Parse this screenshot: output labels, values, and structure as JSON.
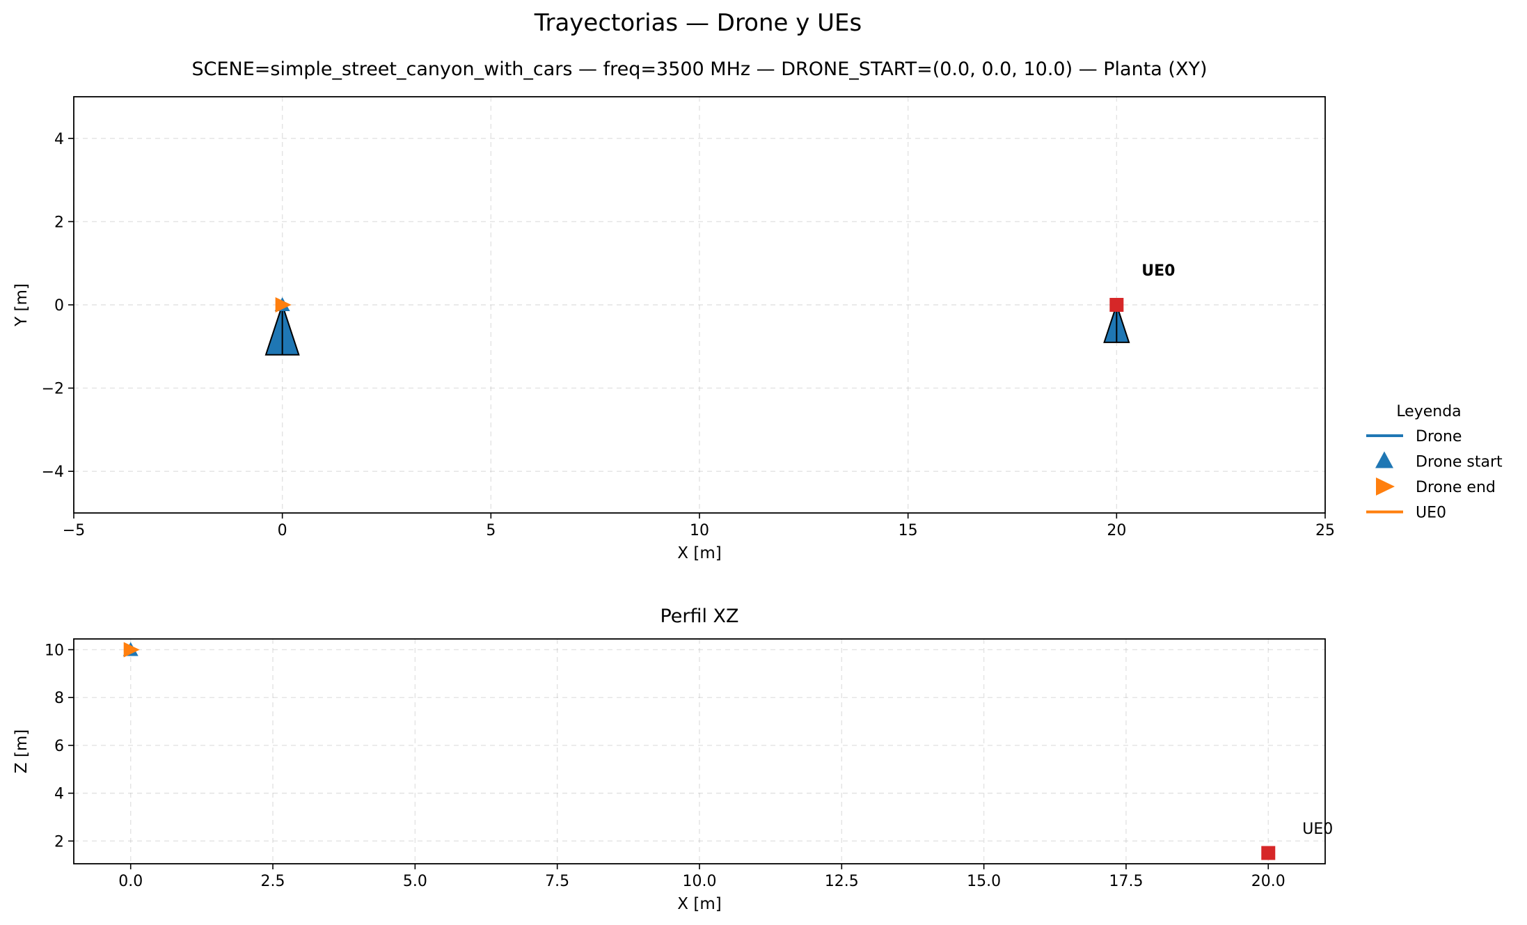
{
  "figure": {
    "suptitle": "Trayectorias — Drone y UEs",
    "colors": {
      "drone": "#1f77b4",
      "drone_end": "#ff7f0e",
      "ue0_line": "#ff7f0e",
      "ue0_marker": "#d62728"
    }
  },
  "legend": {
    "title": "Leyenda",
    "location": "right-center",
    "entries": [
      {
        "label": "Drone",
        "marker": "line",
        "color": "#1f77b4"
      },
      {
        "label": "Drone start",
        "marker": "triangle-up",
        "color": "#1f77b4"
      },
      {
        "label": "Drone end",
        "marker": "triangle-right",
        "color": "#ff7f0e"
      },
      {
        "label": "UE0",
        "marker": "line",
        "color": "#ff7f0e"
      }
    ]
  },
  "chart_data": [
    {
      "type": "scatter",
      "title": "SCENE=simple_street_canyon_with_cars — freq=3500 MHz — DRONE_START=(0.0, 0.0, 10.0) — Planta (XY)",
      "xlabel": "X [m]",
      "ylabel": "Y [m]",
      "xlim": [
        -5,
        25
      ],
      "ylim": [
        -5,
        5
      ],
      "xticks": [
        -5,
        0,
        5,
        10,
        15,
        20,
        25
      ],
      "xtick_labels": [
        "−5",
        "0",
        "5",
        "10",
        "15",
        "20",
        "25"
      ],
      "yticks": [
        -4,
        -2,
        0,
        2,
        4
      ],
      "ytick_labels": [
        "−4",
        "−2",
        "0",
        "2",
        "4"
      ],
      "grid": true,
      "points": [
        {
          "series": "Drone start",
          "x": 0,
          "y": 0,
          "marker": "triangle-up",
          "color": "#1f77b4"
        },
        {
          "series": "Drone end",
          "x": 0,
          "y": 0,
          "marker": "triangle-right",
          "color": "#ff7f0e"
        },
        {
          "series": "UE0",
          "x": 20,
          "y": 0,
          "marker": "square",
          "color": "#d62728"
        }
      ],
      "arrows": [
        {
          "x": 0,
          "y": 0,
          "dx": 0,
          "dy": -1.2,
          "color": "#1f77b4"
        },
        {
          "x": 20,
          "y": 0,
          "dx": 0,
          "dy": -0.9,
          "color": "#1f77b4"
        }
      ],
      "annotations": [
        {
          "text": "UE0",
          "x": 20.6,
          "y": 0.7,
          "bold": true
        }
      ]
    },
    {
      "type": "scatter",
      "title": "Perfil XZ",
      "xlabel": "X [m]",
      "ylabel": "Z [m]",
      "xlim": [
        -1,
        21
      ],
      "ylim": [
        1.05,
        10.45
      ],
      "xticks": [
        0,
        2.5,
        5,
        7.5,
        10,
        12.5,
        15,
        17.5,
        20
      ],
      "xtick_labels": [
        "0.0",
        "2.5",
        "5.0",
        "7.5",
        "10.0",
        "12.5",
        "15.0",
        "17.5",
        "20.0"
      ],
      "yticks": [
        2,
        4,
        6,
        8,
        10
      ],
      "ytick_labels": [
        "2",
        "4",
        "6",
        "8",
        "10"
      ],
      "grid": true,
      "points": [
        {
          "series": "Drone start",
          "x": 0,
          "y": 10,
          "marker": "triangle-up",
          "color": "#1f77b4"
        },
        {
          "series": "Drone end",
          "x": 0,
          "y": 10,
          "marker": "triangle-right",
          "color": "#ff7f0e"
        },
        {
          "series": "UE0",
          "x": 20,
          "y": 1.5,
          "marker": "square",
          "color": "#d62728"
        }
      ],
      "arrows": [],
      "annotations": [
        {
          "text": "UE0",
          "x": 20.6,
          "y": 2.3,
          "bold": false
        }
      ]
    }
  ]
}
